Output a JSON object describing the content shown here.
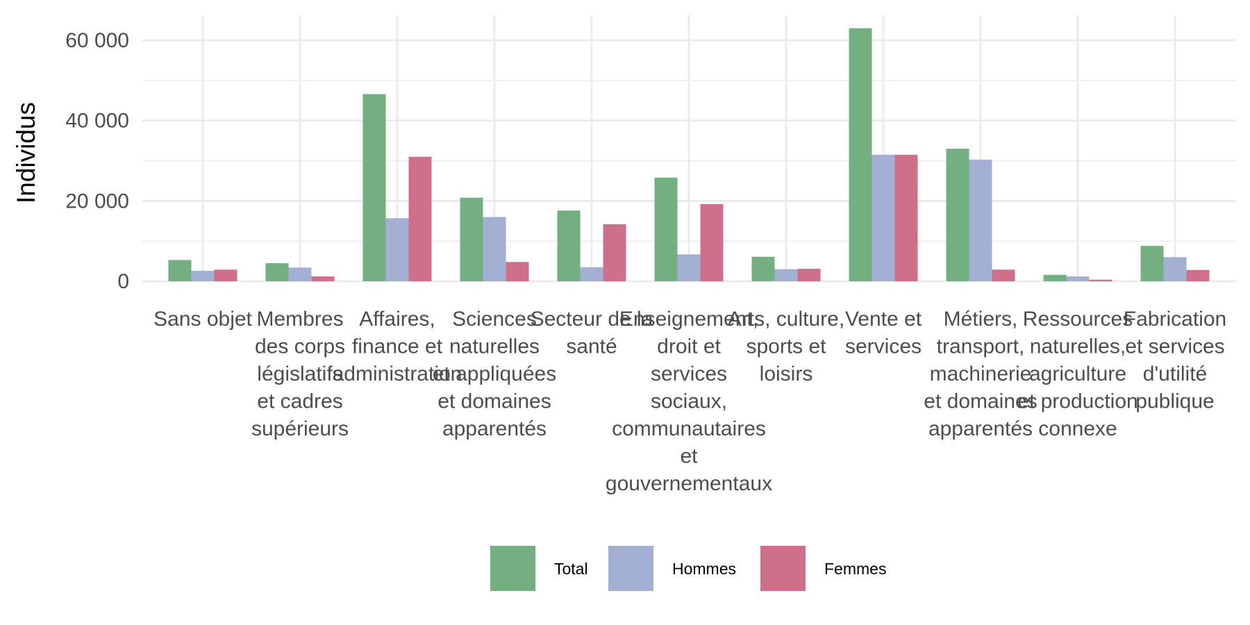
{
  "chart_data": {
    "type": "bar",
    "xlabel": "",
    "ylabel": "Individus",
    "ylim": [
      0,
      66000
    ],
    "yticks": [
      0,
      20000,
      40000,
      60000
    ],
    "ytick_labels": [
      "0",
      "20 000",
      "40 000",
      "60 000"
    ],
    "grid": true,
    "legend_position": "bottom",
    "categories": [
      [
        "Sans objet"
      ],
      [
        "Membres",
        "des corps",
        "législatifs",
        "et cadres",
        "supérieurs"
      ],
      [
        "Affaires,",
        "finance et",
        "administration"
      ],
      [
        "Sciences",
        "naturelles",
        "et appliquées",
        "et domaines",
        "apparentés"
      ],
      [
        "Secteur de la",
        "santé"
      ],
      [
        "Enseignement,",
        "droit et",
        "services",
        "sociaux,",
        "communautaires",
        "et",
        "gouvernementaux"
      ],
      [
        "Arts, culture,",
        "sports et",
        "loisirs"
      ],
      [
        "Vente et",
        "services"
      ],
      [
        "Métiers,",
        "transport,",
        "machinerie",
        "et domaines",
        "apparentés"
      ],
      [
        "Ressources",
        "naturelles,",
        "agriculture",
        "et production",
        "connexe"
      ],
      [
        "Fabrication",
        "et services",
        "d'utilité",
        "publique"
      ]
    ],
    "series": [
      {
        "name": "Total",
        "color": "#73af80",
        "values": [
          5300,
          4500,
          46600,
          20800,
          17600,
          25800,
          6100,
          63000,
          33000,
          1600,
          8800
        ]
      },
      {
        "name": "Hommes",
        "color": "#a3b0d3",
        "values": [
          2600,
          3400,
          15700,
          16000,
          3500,
          6700,
          3000,
          31500,
          30300,
          1200,
          6000
        ]
      },
      {
        "name": "Femmes",
        "color": "#cf708b",
        "values": [
          2900,
          1200,
          31000,
          4800,
          14200,
          19200,
          3100,
          31500,
          2900,
          400,
          2800
        ]
      }
    ]
  }
}
